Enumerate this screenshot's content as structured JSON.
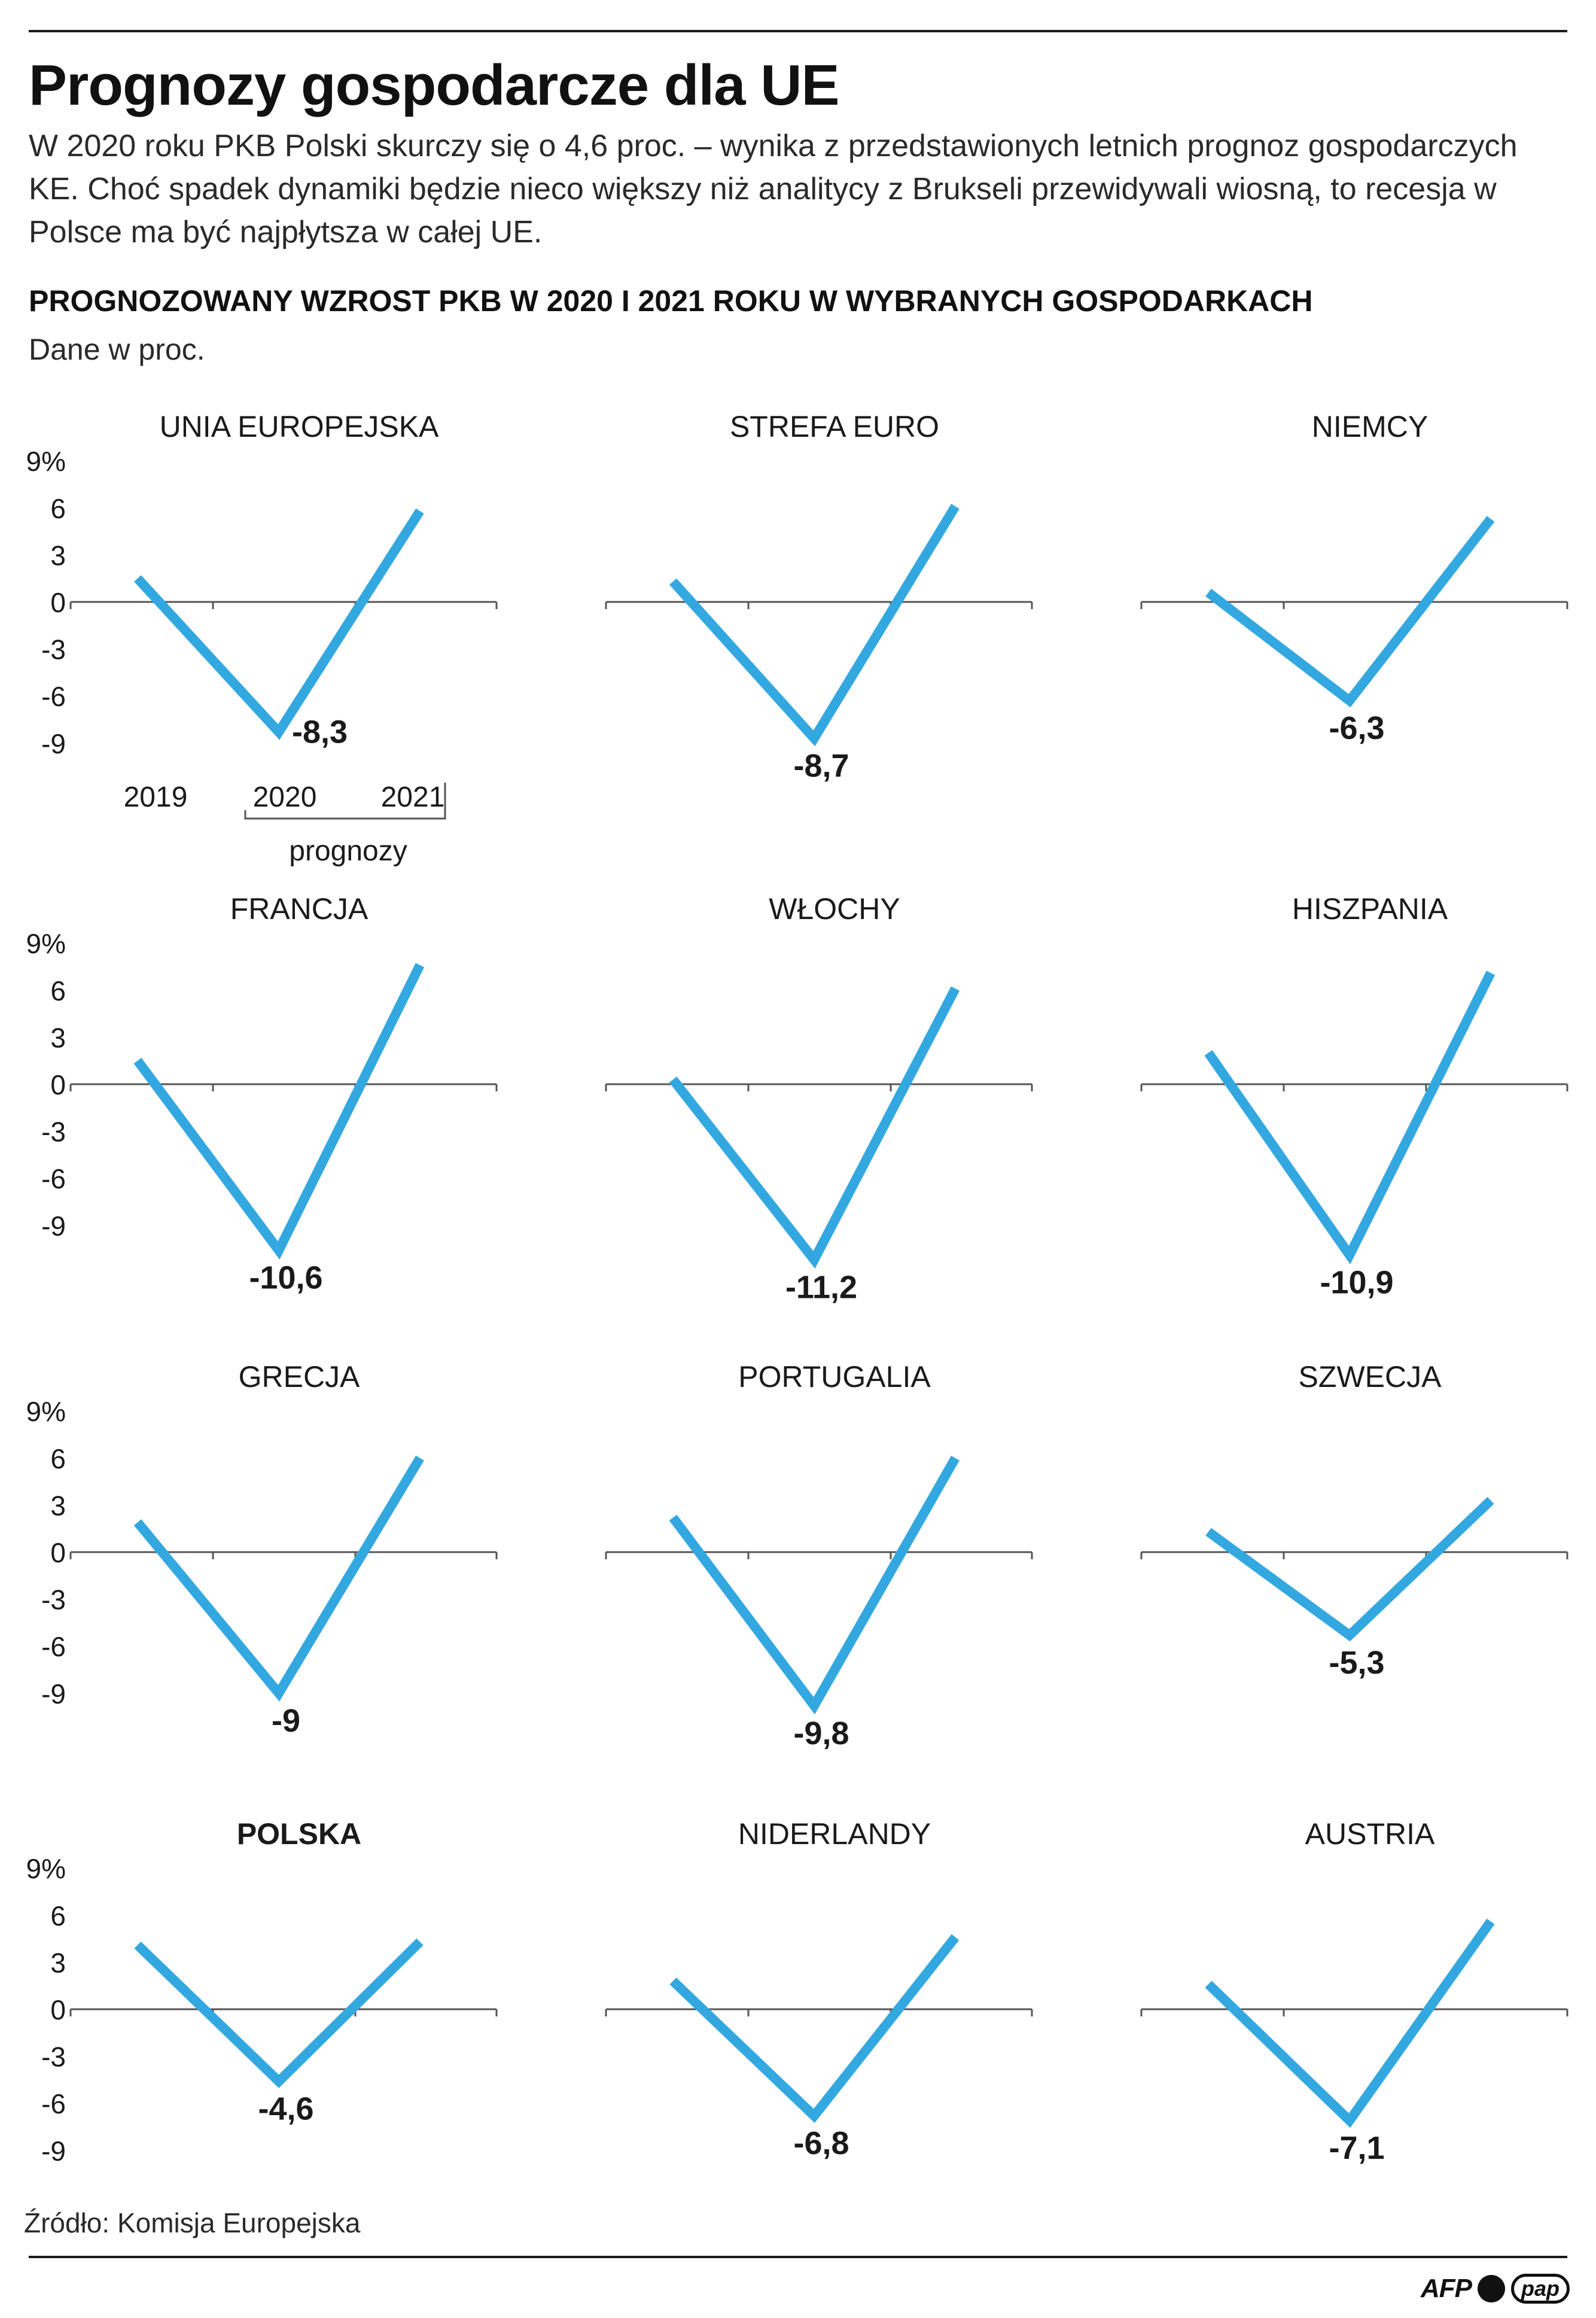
{
  "header": {
    "title": "Prognozy gospodarcze dla UE",
    "lead": "W 2020 roku PKB Polski skurczy się o 4,6 proc. – wynika z przedstawionych letnich prognoz gospodarczych KE. Choć spadek dynamiki będzie nieco większy niż analitycy z Brukseli przewidywali wiosną, to recesja w Polsce ma być najpłytsza w całej UE.",
    "subhead": "PROGNOZOWANY WZROST PKB W 2020 I 2021 ROKU W WYBRANYCH GOSPODARKACH",
    "units": "Dane w proc."
  },
  "axis": {
    "y_ticks": [
      "9%",
      "6",
      "3",
      "0",
      "-3",
      "-6",
      "-9"
    ],
    "years": [
      "2019",
      "2020",
      "2021"
    ],
    "forecast_label": "prognozy"
  },
  "colors": {
    "line": "#33a8e0",
    "axis": "#555555",
    "text": "#1a1a1a"
  },
  "chart_data": [
    {
      "type": "line",
      "title": "UNIA EUROPEJSKA",
      "x": [
        "2019",
        "2020",
        "2021"
      ],
      "values": [
        1.5,
        -8.3,
        5.8
      ],
      "label": "-8,3",
      "ylim": [
        -9,
        9
      ]
    },
    {
      "type": "line",
      "title": "STREFA EURO",
      "x": [
        "2019",
        "2020",
        "2021"
      ],
      "values": [
        1.3,
        -8.7,
        6.1
      ],
      "label": "-8,7",
      "ylim": [
        -9,
        9
      ]
    },
    {
      "type": "line",
      "title": "NIEMCY",
      "x": [
        "2019",
        "2020",
        "2021"
      ],
      "values": [
        0.6,
        -6.3,
        5.3
      ],
      "label": "-6,3",
      "ylim": [
        -9,
        9
      ]
    },
    {
      "type": "line",
      "title": "FRANCJA",
      "x": [
        "2019",
        "2020",
        "2021"
      ],
      "values": [
        1.5,
        -10.6,
        7.6
      ],
      "label": "-10,6",
      "ylim": [
        -9,
        9
      ]
    },
    {
      "type": "line",
      "title": "WŁOCHY",
      "x": [
        "2019",
        "2020",
        "2021"
      ],
      "values": [
        0.3,
        -11.2,
        6.1
      ],
      "label": "-11,2",
      "ylim": [
        -9,
        9
      ]
    },
    {
      "type": "line",
      "title": "HISZPANIA",
      "x": [
        "2019",
        "2020",
        "2021"
      ],
      "values": [
        2.0,
        -10.9,
        7.1
      ],
      "label": "-10,9",
      "ylim": [
        -9,
        9
      ]
    },
    {
      "type": "line",
      "title": "GRECJA",
      "x": [
        "2019",
        "2020",
        "2021"
      ],
      "values": [
        1.9,
        -9.0,
        6.0
      ],
      "label": "-9",
      "ylim": [
        -9,
        9
      ]
    },
    {
      "type": "line",
      "title": "PORTUGALIA",
      "x": [
        "2019",
        "2020",
        "2021"
      ],
      "values": [
        2.2,
        -9.8,
        6.0
      ],
      "label": "-9,8",
      "ylim": [
        -9,
        9
      ]
    },
    {
      "type": "line",
      "title": "SZWECJA",
      "x": [
        "2019",
        "2020",
        "2021"
      ],
      "values": [
        1.3,
        -5.3,
        3.3
      ],
      "label": "-5,3",
      "ylim": [
        -9,
        9
      ]
    },
    {
      "type": "line",
      "title": "POLSKA",
      "x": [
        "2019",
        "2020",
        "2021"
      ],
      "values": [
        4.1,
        -4.6,
        4.3
      ],
      "label": "-4,6",
      "ylim": [
        -9,
        9
      ]
    },
    {
      "type": "line",
      "title": "NIDERLANDY",
      "x": [
        "2019",
        "2020",
        "2021"
      ],
      "values": [
        1.8,
        -6.8,
        4.6
      ],
      "label": "-6,8",
      "ylim": [
        -9,
        9
      ]
    },
    {
      "type": "line",
      "title": "AUSTRIA",
      "x": [
        "2019",
        "2020",
        "2021"
      ],
      "values": [
        1.6,
        -7.1,
        5.6
      ],
      "label": "-7,1",
      "ylim": [
        -9,
        9
      ]
    }
  ],
  "footer": {
    "source": "Źródło: Komisja Europejska",
    "logo_afp": "AFP",
    "logo_pap": "pap"
  }
}
